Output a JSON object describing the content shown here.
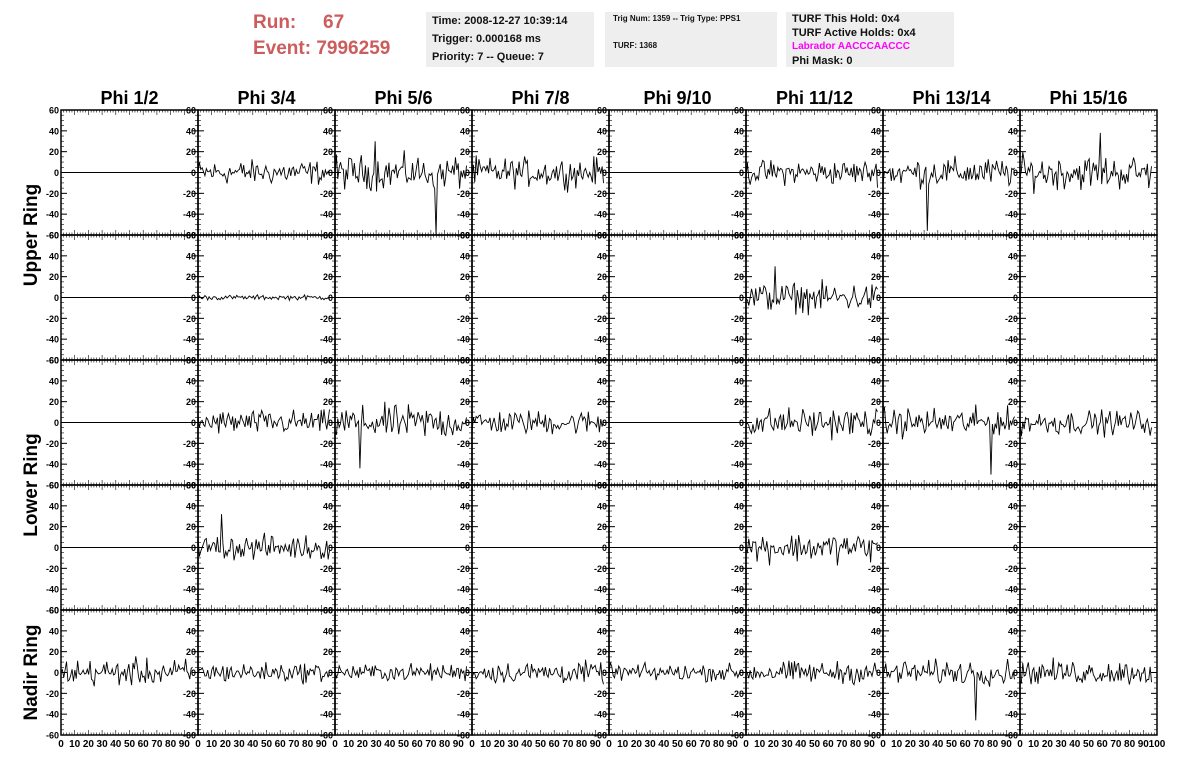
{
  "header": {
    "run_label": "Run:",
    "run_value": "67",
    "event_label": "Event:",
    "event_value": "7996259"
  },
  "info_box1": {
    "time": "Time: 2008-12-27 10:39:14",
    "trigger": "Trigger: 0.000168 ms",
    "priority": "Priority: 7 -- Queue: 7"
  },
  "info_box2": {
    "trig": "Trig Num: 1359 -- Trig Type: PPS1",
    "turf": "TURF: 1368"
  },
  "info_box3": {
    "this_hold": "TURF This Hold: 0x4",
    "active_holds": "TURF Active Holds: 0x4",
    "labrador": "Labrador AACCCAACCC",
    "phi_mask": "Phi Mask: 0"
  },
  "colors": {
    "run_text": "#cd5c5c",
    "labrador_text": "#ff00ff",
    "info_bg": "#eeeeee",
    "trace": "#000000"
  },
  "chart_data": {
    "type": "line",
    "description_free": true,
    "columns": [
      "Phi 1/2",
      "Phi 3/4",
      "Phi 5/6",
      "Phi 7/8",
      "Phi 9/10",
      "Phi 11/12",
      "Phi 13/14",
      "Phi 15/16"
    ],
    "row_groups": [
      {
        "label": "Upper Ring",
        "rows": [
          0,
          1
        ]
      },
      {
        "label": "Lower Ring",
        "rows": [
          2,
          3
        ]
      },
      {
        "label": "Nadir Ring",
        "rows": [
          4
        ]
      }
    ],
    "x_range": [
      0,
      100
    ],
    "x_ticks": [
      "0",
      "10",
      "20",
      "30",
      "40",
      "50",
      "60",
      "70",
      "80",
      "90",
      "100"
    ],
    "y_range": [
      -60,
      60
    ],
    "y_ticks": [
      "60",
      "40",
      "20",
      "0",
      "-20",
      "-40",
      "-60"
    ],
    "trace_length": 96,
    "amplitude_grid": [
      [
        0,
        10,
        14,
        12,
        0,
        10,
        12,
        14
      ],
      [
        0,
        2,
        0,
        0,
        0,
        12,
        0,
        0
      ],
      [
        0,
        10,
        14,
        10,
        0,
        12,
        12,
        10
      ],
      [
        0,
        10,
        0,
        0,
        0,
        12,
        0,
        0
      ],
      [
        11,
        8,
        7,
        9,
        7,
        9,
        10,
        10
      ]
    ],
    "spikes": [
      {
        "row": 0,
        "col": 2,
        "x": 77,
        "y": -62
      },
      {
        "row": 0,
        "col": 2,
        "x": 30,
        "y": 30
      },
      {
        "row": 0,
        "col": 6,
        "x": 34,
        "y": -56
      },
      {
        "row": 0,
        "col": 7,
        "x": 61,
        "y": 38
      },
      {
        "row": 1,
        "col": 5,
        "x": 22,
        "y": 30
      },
      {
        "row": 2,
        "col": 6,
        "x": 82,
        "y": -50
      },
      {
        "row": 2,
        "col": 2,
        "x": 19,
        "y": -44
      },
      {
        "row": 3,
        "col": 1,
        "x": 18,
        "y": 32
      },
      {
        "row": 4,
        "col": 6,
        "x": 70,
        "y": -46
      }
    ]
  }
}
